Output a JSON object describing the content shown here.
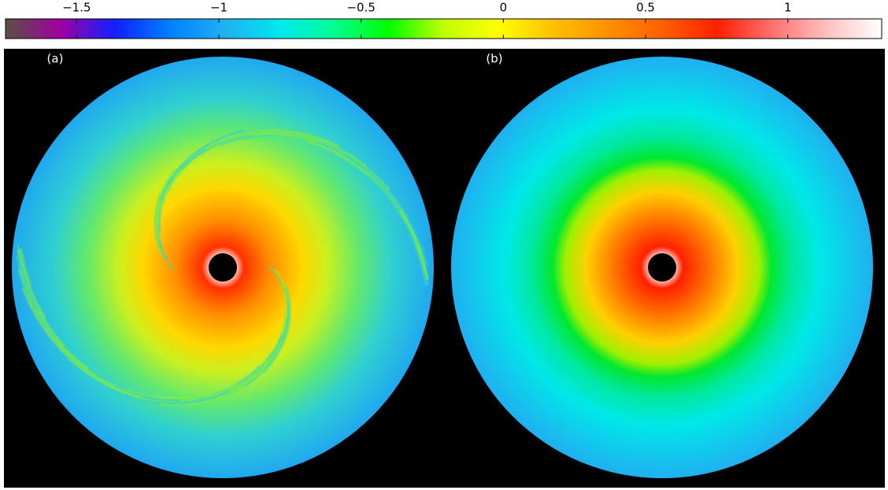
{
  "chart_data": {
    "type": "colorbar",
    "clim": [
      -1.75,
      1.33
    ],
    "ticks": [
      {
        "value": -1.5,
        "label": "−1.5"
      },
      {
        "value": -1,
        "label": "−1"
      },
      {
        "value": -0.5,
        "label": "−0.5"
      },
      0,
      0.5,
      1
    ],
    "colormap": [
      "#5a5040",
      "#a000a0",
      "#1020ff",
      "#0080ff",
      "#20b0f0",
      "#00e8f0",
      "#00ff90",
      "#00ff00",
      "#c0ff00",
      "#ffff00",
      "#ffc000",
      "#ff9000",
      "#ff6000",
      "#ff2000",
      "#ff7070",
      "#ffc0c0",
      "#ffffff"
    ],
    "panels": [
      "(a)",
      "(b)"
    ]
  }
}
